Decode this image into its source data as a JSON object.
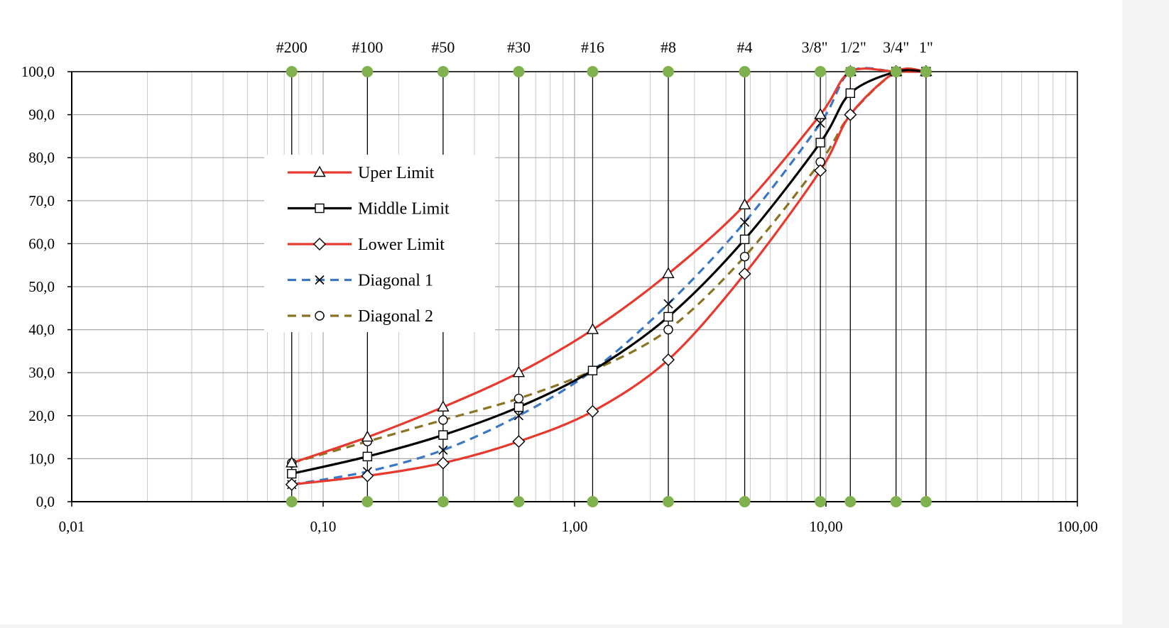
{
  "chart_data": {
    "type": "line",
    "x_scale": "log",
    "xlim": [
      0.01,
      100
    ],
    "ylim": [
      0,
      100
    ],
    "x_ticks": [
      {
        "value": 0.01,
        "label": "0,01"
      },
      {
        "value": 0.1,
        "label": "0,10"
      },
      {
        "value": 1,
        "label": "1,00"
      },
      {
        "value": 10,
        "label": "10,00"
      },
      {
        "value": 100,
        "label": "100,00"
      }
    ],
    "y_ticks": [
      {
        "value": 0,
        "label": "0,0"
      },
      {
        "value": 10,
        "label": "10,0"
      },
      {
        "value": 20,
        "label": "20,0"
      },
      {
        "value": 30,
        "label": "30,0"
      },
      {
        "value": 40,
        "label": "40,0"
      },
      {
        "value": 50,
        "label": "50,0"
      },
      {
        "value": 60,
        "label": "60,0"
      },
      {
        "value": 70,
        "label": "70,0"
      },
      {
        "value": 80,
        "label": "80,0"
      },
      {
        "value": 90,
        "label": "90,0"
      },
      {
        "value": 100,
        "label": "100,0"
      }
    ],
    "sieves": [
      {
        "label": "#200",
        "size": 0.075
      },
      {
        "label": "#100",
        "size": 0.15
      },
      {
        "label": "#50",
        "size": 0.3
      },
      {
        "label": "#30",
        "size": 0.6
      },
      {
        "label": "#16",
        "size": 1.18
      },
      {
        "label": "#8",
        "size": 2.36
      },
      {
        "label": "#4",
        "size": 4.75
      },
      {
        "label": "3/8\"",
        "size": 9.5
      },
      {
        "label": "1/2\"",
        "size": 12.5
      },
      {
        "label": "3/4\"",
        "size": 19
      },
      {
        "label": "1\"",
        "size": 25
      }
    ],
    "grid": true,
    "legend_position": "upper-left",
    "series": [
      {
        "name": "Uper Limit",
        "color": "#e8392e",
        "dash": "solid",
        "marker": "triangle",
        "x": [
          0.075,
          0.15,
          0.3,
          0.6,
          1.18,
          2.36,
          4.75,
          9.5,
          12.5,
          19,
          25
        ],
        "y": [
          9,
          15,
          22,
          30,
          40,
          53,
          69,
          90,
          100,
          100,
          100
        ]
      },
      {
        "name": "Middle Limit",
        "color": "#000000",
        "dash": "solid",
        "marker": "square",
        "x": [
          0.075,
          0.15,
          0.3,
          0.6,
          1.18,
          2.36,
          4.75,
          9.5,
          12.5,
          19,
          25
        ],
        "y": [
          6.5,
          10.5,
          15.5,
          22,
          30.5,
          43,
          61,
          83.5,
          95,
          100,
          100
        ]
      },
      {
        "name": "Lower Limit",
        "color": "#e8392e",
        "dash": "solid",
        "marker": "diamond",
        "x": [
          0.075,
          0.15,
          0.3,
          0.6,
          1.18,
          2.36,
          4.75,
          9.5,
          12.5,
          19,
          25
        ],
        "y": [
          4,
          6,
          9,
          14,
          21,
          33,
          53,
          77,
          90,
          100,
          100
        ]
      },
      {
        "name": "Diagonal 1",
        "color": "#3a78c4",
        "dash": "dashed",
        "marker": "x",
        "x": [
          0.075,
          0.15,
          0.3,
          0.6,
          1.18,
          2.36,
          4.75,
          9.5,
          12.5,
          19,
          25
        ],
        "y": [
          4,
          7,
          12,
          20,
          30.5,
          46,
          65,
          88,
          100,
          100,
          100
        ]
      },
      {
        "name": "Diagonal 2",
        "color": "#8a7322",
        "dash": "dashed",
        "marker": "circle",
        "x": [
          0.075,
          0.15,
          0.3,
          0.6,
          1.18,
          2.36,
          4.75,
          9.5,
          12.5,
          19,
          25
        ],
        "y": [
          9,
          14,
          19,
          24,
          30.5,
          40,
          57,
          79,
          90,
          100,
          100
        ]
      }
    ],
    "sieve_marker_color": "#7fb24f"
  }
}
